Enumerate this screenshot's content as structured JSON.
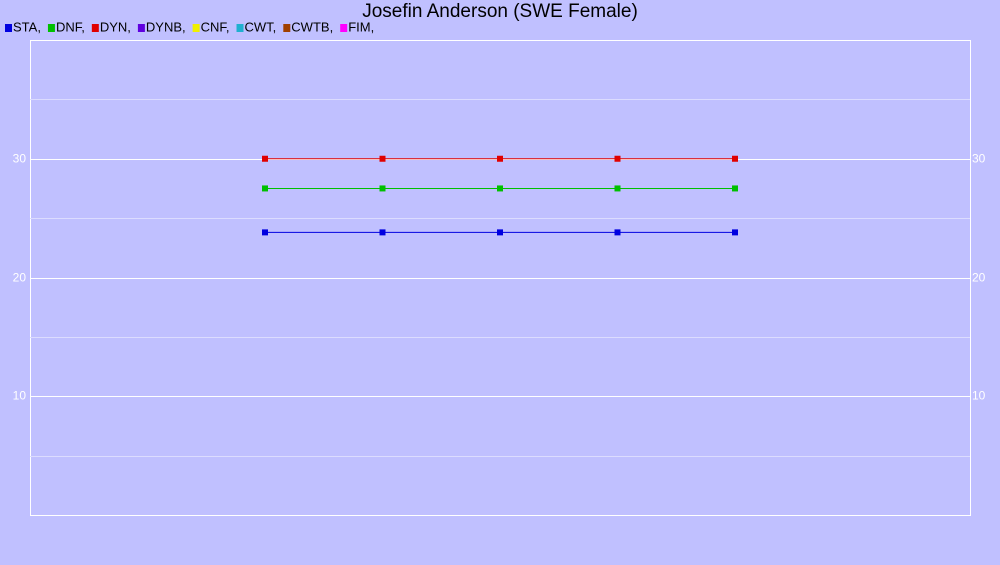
{
  "chart_data": {
    "type": "line",
    "title": "Josefin Anderson (SWE Female)",
    "categories": [
      null,
      null,
      null,
      null,
      null
    ],
    "series": [
      {
        "name": "STA,",
        "color": "#0000e0",
        "values": [
          23.8,
          23.8,
          23.8,
          23.8,
          23.8
        ]
      },
      {
        "name": "DNF,",
        "color": "#00c000",
        "values": [
          27.5,
          27.5,
          27.5,
          27.5,
          27.5
        ]
      },
      {
        "name": "DYN,",
        "color": "#e00000",
        "values": [
          30,
          30,
          30,
          30,
          30
        ]
      },
      {
        "name": "DYNB,",
        "color": "#6000e0",
        "values": [
          null,
          null,
          null,
          null,
          null
        ]
      },
      {
        "name": "CNF,",
        "color": "#f0f000",
        "values": [
          null,
          null,
          null,
          null,
          null
        ]
      },
      {
        "name": "CWT,",
        "color": "#20b0d0",
        "values": [
          null,
          null,
          null,
          null,
          null
        ]
      },
      {
        "name": "CWTB,",
        "color": "#a04000",
        "values": [
          null,
          null,
          null,
          null,
          null
        ]
      },
      {
        "name": "FIM,",
        "color": "#ff00ff",
        "values": [
          null,
          null,
          null,
          null,
          null
        ]
      }
    ],
    "ylim": [
      0,
      40
    ],
    "yticks": [
      10,
      20,
      30
    ],
    "minor_yticks": [
      5,
      15,
      25,
      35
    ],
    "grid": true
  }
}
